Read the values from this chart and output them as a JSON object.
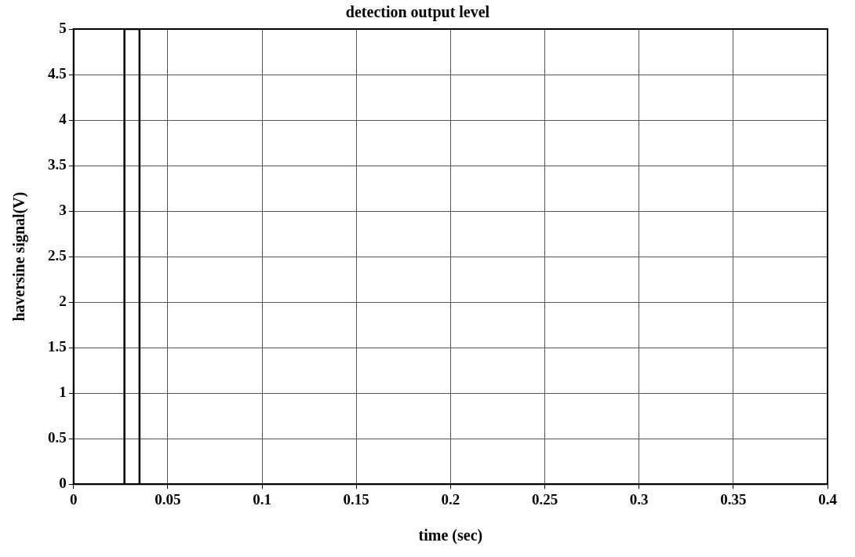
{
  "chart_data": {
    "type": "line",
    "title": "detection output level",
    "xlabel": "time (sec)",
    "ylabel": "haversine signal(V)",
    "series": [
      {
        "color": "#000000",
        "x": [
          0,
          0.027,
          0.027,
          0.035,
          0.035,
          0.4
        ],
        "values": [
          0,
          0,
          5,
          5,
          0,
          0
        ]
      }
    ],
    "xlim": [
      0,
      0.4
    ],
    "xticks": [
      0,
      0.05,
      0.1,
      0.15,
      0.2,
      0.25,
      0.3,
      0.35,
      0.4
    ],
    "ylim": [
      0,
      5
    ],
    "yticks": [
      0,
      0.5,
      1,
      1.5,
      2,
      2.5,
      3,
      3.5,
      4,
      4.5,
      5
    ],
    "grid": true,
    "legend": false,
    "marker": "none",
    "line_style": "solid"
  }
}
